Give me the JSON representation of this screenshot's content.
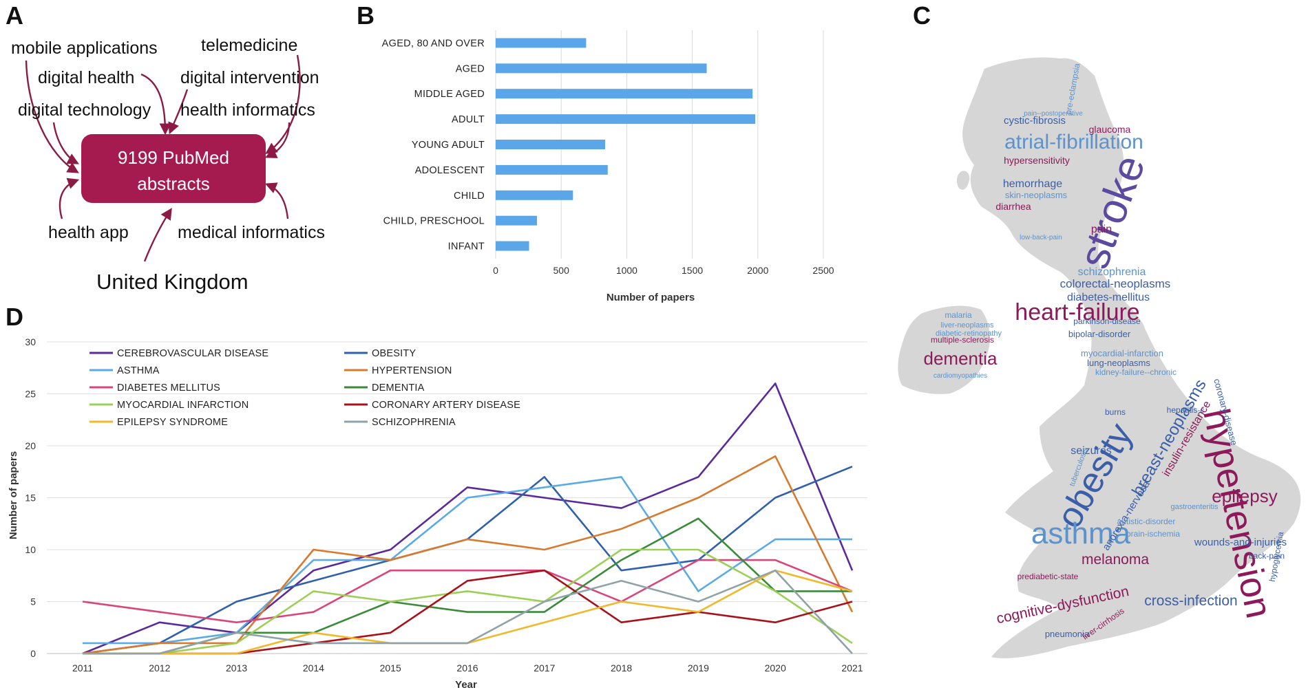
{
  "panels": {
    "a": "A",
    "b": "B",
    "c": "C",
    "d": "D"
  },
  "panel_a": {
    "center_box": [
      "9199 PubMed",
      "abstracts"
    ],
    "keywords": [
      "mobile applications",
      "telemedicine",
      "digital health",
      "digital intervention",
      "digital technology",
      "health informatics",
      "health app",
      "medical informatics"
    ],
    "country": "United Kingdom",
    "box_color": "#a51a4f",
    "arrow_color": "#8c1a44"
  },
  "panel_c": {
    "words": [
      {
        "text": "stroke",
        "color": "#5b4a9e"
      },
      {
        "text": "hypertension",
        "color": "#8c1a5a"
      },
      {
        "text": "obesity",
        "color": "#3a5ea8"
      },
      {
        "text": "asthma",
        "color": "#5c93cc"
      },
      {
        "text": "heart-failure",
        "color": "#8c1a5a"
      },
      {
        "text": "atrial-fibrillation",
        "color": "#5c93cc"
      },
      {
        "text": "dementia",
        "color": "#8c1a5a"
      },
      {
        "text": "epilepsy",
        "color": "#8c1a5a"
      },
      {
        "text": "cognitive-dysfunction",
        "color": "#8c1a5a"
      },
      {
        "text": "melanoma",
        "color": "#8c1a5a"
      },
      {
        "text": "cross-infection",
        "color": "#3a5ea8"
      },
      {
        "text": "breast-neoplasms",
        "color": "#3a5ea8"
      },
      {
        "text": "schizophrenia",
        "color": "#5c93cc"
      },
      {
        "text": "colorectal-neoplasms",
        "color": "#3a5ea8"
      },
      {
        "text": "diabetes-mellitus",
        "color": "#3a5ea8"
      },
      {
        "text": "cystic-fibrosis",
        "color": "#3a5ea8"
      },
      {
        "text": "glaucoma",
        "color": "#8c1a5a"
      },
      {
        "text": "hypersensitivity",
        "color": "#8c1a5a"
      },
      {
        "text": "hemorrhage",
        "color": "#3a5ea8"
      },
      {
        "text": "skin-neoplasms",
        "color": "#5c93cc"
      },
      {
        "text": "diarrhea",
        "color": "#8c1a5a"
      },
      {
        "text": "pain",
        "color": "#8c1a5a"
      },
      {
        "text": "bipolar-disorder",
        "color": "#3a5ea8"
      },
      {
        "text": "lung-neoplasms",
        "color": "#3a5ea8"
      },
      {
        "text": "myocardial-infarction",
        "color": "#5c93cc"
      },
      {
        "text": "hepatitis-c",
        "color": "#3a5ea8"
      },
      {
        "text": "insulin-resistance",
        "color": "#8c1a5a"
      },
      {
        "text": "seizures",
        "color": "#3a5ea8"
      },
      {
        "text": "anorexia-nervosa",
        "color": "#3a5ea8"
      },
      {
        "text": "wounds-and-injuries",
        "color": "#3a5ea8"
      },
      {
        "text": "pneumonia",
        "color": "#3a5ea8"
      },
      {
        "text": "malaria",
        "color": "#5c93cc"
      },
      {
        "text": "multiple-sclerosis",
        "color": "#8c1a5a"
      },
      {
        "text": "pre-eclampsia",
        "color": "#5c93cc"
      },
      {
        "text": "coronary-disease",
        "color": "#3a5ea8"
      },
      {
        "text": "brain-ischemia",
        "color": "#5c93cc"
      },
      {
        "text": "autistic-disorder",
        "color": "#5c93cc"
      },
      {
        "text": "back-pain",
        "color": "#3a5ea8"
      },
      {
        "text": "hypoglycemia",
        "color": "#3a5ea8"
      },
      {
        "text": "prediabetic-state",
        "color": "#8c1a5a"
      },
      {
        "text": "burns",
        "color": "#3a5ea8"
      },
      {
        "text": "liver-cirrhosis",
        "color": "#8c1a5a"
      },
      {
        "text": "parkinson-disease",
        "color": "#3a5ea8"
      },
      {
        "text": "liver-neoplasms",
        "color": "#5c93cc"
      },
      {
        "text": "diabetic-retinopathy",
        "color": "#5c93cc"
      },
      {
        "text": "kidney-failure--chronic",
        "color": "#5c93cc"
      },
      {
        "text": "gastroenteritis",
        "color": "#5c93cc"
      },
      {
        "text": "tuberculosis",
        "color": "#5c93cc"
      },
      {
        "text": "cardiomyopathies",
        "color": "#5c93cc"
      },
      {
        "text": "low-back-pain",
        "color": "#5c93cc"
      },
      {
        "text": "pain--postoperative",
        "color": "#5c93cc"
      }
    ],
    "map_color": "#d6d6d6"
  },
  "chart_data": [
    {
      "type": "bar",
      "orientation": "horizontal",
      "categories": [
        "AGED, 80 AND OVER",
        "AGED",
        "MIDDLE AGED",
        "ADULT",
        "YOUNG ADULT",
        "ADOLESCENT",
        "CHILD",
        "CHILD, PRESCHOOL",
        "INFANT"
      ],
      "values": [
        690,
        1610,
        1960,
        1980,
        835,
        855,
        590,
        315,
        255
      ],
      "xlabel": "Number of papers",
      "xlim": [
        0,
        2500
      ],
      "xticks": [
        "0",
        "500",
        "1000",
        "1500",
        "2000",
        "2500"
      ],
      "grid": true,
      "bar_color": "#5aa6e8"
    },
    {
      "type": "line",
      "x": [
        "2011",
        "2012",
        "2013",
        "2014",
        "2015",
        "2016",
        "2017",
        "2018",
        "2019",
        "2020",
        "2021"
      ],
      "xlabel": "Year",
      "ylabel": "Number of papers",
      "ylim": [
        0,
        30
      ],
      "yticks": [
        "0",
        "5",
        "10",
        "15",
        "20",
        "25",
        "30"
      ],
      "grid": true,
      "legend_position": "top-left",
      "series": [
        {
          "name": "CEREBROVASCULAR DISEASE",
          "color": "#5b2a9a",
          "values": [
            0,
            3,
            2,
            8,
            10,
            16,
            15,
            14,
            17,
            26,
            8
          ]
        },
        {
          "name": "OBESITY",
          "color": "#2f5fad",
          "values": [
            0,
            1,
            5,
            7,
            9,
            11,
            17,
            8,
            9,
            15,
            18
          ]
        },
        {
          "name": "ASTHMA",
          "color": "#5aaae6",
          "values": [
            1,
            1,
            2,
            9,
            9,
            15,
            16,
            17,
            6,
            11,
            11
          ]
        },
        {
          "name": "HYPERTENSION",
          "color": "#d87a2e",
          "values": [
            0,
            1,
            1,
            10,
            9,
            11,
            10,
            12,
            15,
            19,
            4
          ]
        },
        {
          "name": "DIABETES MELLITUS",
          "color": "#d9457a",
          "values": [
            5,
            4,
            3,
            4,
            8,
            8,
            8,
            5,
            9,
            9,
            6
          ]
        },
        {
          "name": "DEMENTIA",
          "color": "#3a8a3a",
          "values": [
            0,
            0,
            2,
            2,
            5,
            4,
            4,
            9,
            13,
            6,
            6
          ]
        },
        {
          "name": "MYOCARDIAL INFARCTION",
          "color": "#9ccf55",
          "values": [
            0,
            0,
            1,
            6,
            5,
            6,
            5,
            10,
            10,
            6,
            1
          ]
        },
        {
          "name": "CORONARY ARTERY DISEASE",
          "color": "#a8101a",
          "values": [
            0,
            0,
            0,
            1,
            2,
            7,
            8,
            3,
            4,
            3,
            5
          ]
        },
        {
          "name": "EPILEPSY SYNDROME",
          "color": "#f0b82a",
          "values": [
            0,
            0,
            0,
            2,
            1,
            1,
            3,
            5,
            4,
            8,
            6
          ]
        },
        {
          "name": "SCHIZOPHRENIA",
          "color": "#8ea2a8",
          "values": [
            0,
            0,
            2,
            1,
            1,
            1,
            5,
            7,
            5,
            8,
            0
          ]
        }
      ]
    }
  ]
}
